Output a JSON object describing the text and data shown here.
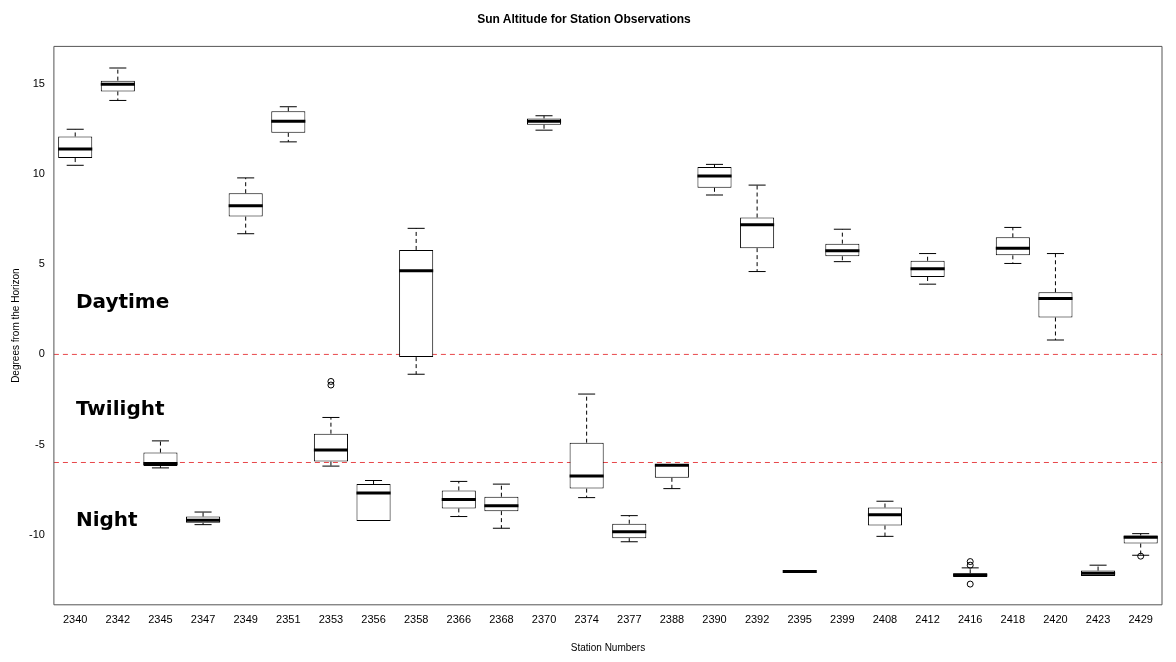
{
  "chart_data": {
    "type": "box",
    "title": "Sun Altitude for Station Observations",
    "xlabel": "Station Numbers",
    "ylabel": "Degrees from the Horizon",
    "categories": [
      "2340",
      "2342",
      "2345",
      "2347",
      "2349",
      "2351",
      "2353",
      "2356",
      "2358",
      "2366",
      "2368",
      "2370",
      "2374",
      "2377",
      "2388",
      "2390",
      "2392",
      "2395",
      "2399",
      "2408",
      "2412",
      "2416",
      "2418",
      "2420",
      "2423",
      "2429"
    ],
    "boxes": [
      {
        "low": 10.5,
        "q1": 10.9,
        "median": 11.4,
        "q3": 12.1,
        "high": 12.5
      },
      {
        "low": 14.1,
        "q1": 14.6,
        "median": 15.0,
        "q3": 15.2,
        "high": 15.9
      },
      {
        "low": -6.3,
        "q1": -6.2,
        "median": -6.05,
        "q3": -5.45,
        "high": -4.8
      },
      {
        "low": -9.45,
        "q1": -9.35,
        "median": -9.2,
        "q3": -9.0,
        "high": -8.75
      },
      {
        "low": 6.7,
        "q1": 7.65,
        "median": 8.25,
        "q3": 8.95,
        "high": 9.8
      },
      {
        "low": 11.8,
        "q1": 12.3,
        "median": 12.95,
        "q3": 13.5,
        "high": 13.75
      },
      {
        "low": -6.2,
        "q1": -5.95,
        "median": -5.3,
        "q3": -4.4,
        "high": -3.5,
        "outliers": [
          -1.5,
          -1.7
        ]
      },
      {
        "low": -9.25,
        "q1": -9.25,
        "median": -7.7,
        "q3": -7.2,
        "high": -7.0
      },
      {
        "low": -1.1,
        "q1": -0.15,
        "median": 4.65,
        "q3": 5.8,
        "high": 7.0
      },
      {
        "low": -9.0,
        "q1": -8.55,
        "median": -8.05,
        "q3": -7.55,
        "high": -7.05
      },
      {
        "low": -9.65,
        "q1": -8.7,
        "median": -8.4,
        "q3": -7.9,
        "high": -7.2
      },
      {
        "low": 12.45,
        "q1": 12.75,
        "median": 12.95,
        "q3": 13.1,
        "high": 13.25
      },
      {
        "low": -7.95,
        "q1": -7.45,
        "median": -6.75,
        "q3": -4.9,
        "high": -2.2
      },
      {
        "low": -10.4,
        "q1": -10.2,
        "median": -9.85,
        "q3": -9.4,
        "high": -8.95
      },
      {
        "low": -7.45,
        "q1": -6.85,
        "median": -6.15,
        "q3": -6.1,
        "high": -6.1
      },
      {
        "low": 8.85,
        "q1": 9.25,
        "median": 9.9,
        "q3": 10.4,
        "high": 10.55
      },
      {
        "low": 4.6,
        "q1": 5.9,
        "median": 7.2,
        "q3": 7.6,
        "high": 9.4
      },
      {
        "low": -12.05,
        "q1": -12.05,
        "median": -12.05,
        "q3": -12.05,
        "high": -12.05
      },
      {
        "low": 5.15,
        "q1": 5.45,
        "median": 5.75,
        "q3": 6.15,
        "high": 6.95
      },
      {
        "low": -10.1,
        "q1": -9.5,
        "median": -8.9,
        "q3": -8.5,
        "high": -8.15
      },
      {
        "low": 3.9,
        "q1": 4.3,
        "median": 4.75,
        "q3": 5.2,
        "high": 5.6
      },
      {
        "low": -12.35,
        "q1": -12.35,
        "median": -12.25,
        "q3": -12.15,
        "high": -11.85,
        "outliers": [
          -11.5,
          -11.7,
          -12.75
        ]
      },
      {
        "low": 5.05,
        "q1": 5.5,
        "median": 5.9,
        "q3": 6.5,
        "high": 7.05
      },
      {
        "low": 0.8,
        "q1": 2.05,
        "median": 3.1,
        "q3": 3.45,
        "high": 5.6
      },
      {
        "low": -12.3,
        "q1": -12.3,
        "median": -12.15,
        "q3": -12.0,
        "high": -11.7
      },
      {
        "low": -11.15,
        "q1": -10.5,
        "median": -10.15,
        "q3": -10.05,
        "high": -9.95,
        "outliers": [
          -11.2
        ]
      }
    ],
    "color": "#000000",
    "ylim": [
      -13.9,
      17.1
    ],
    "yticks": [
      -10,
      -5,
      0,
      5,
      10,
      15
    ],
    "ref_lines": [
      {
        "axis": "y",
        "value": 0,
        "label": null,
        "color": "#e8474a",
        "line_style": "dashed"
      },
      {
        "axis": "y",
        "value": -6,
        "label": null,
        "color": "#e8474a",
        "line_style": "dashed"
      }
    ],
    "annotations": [
      "Daytime",
      "Twilight",
      "Night"
    ],
    "grid": false,
    "legend": false
  }
}
